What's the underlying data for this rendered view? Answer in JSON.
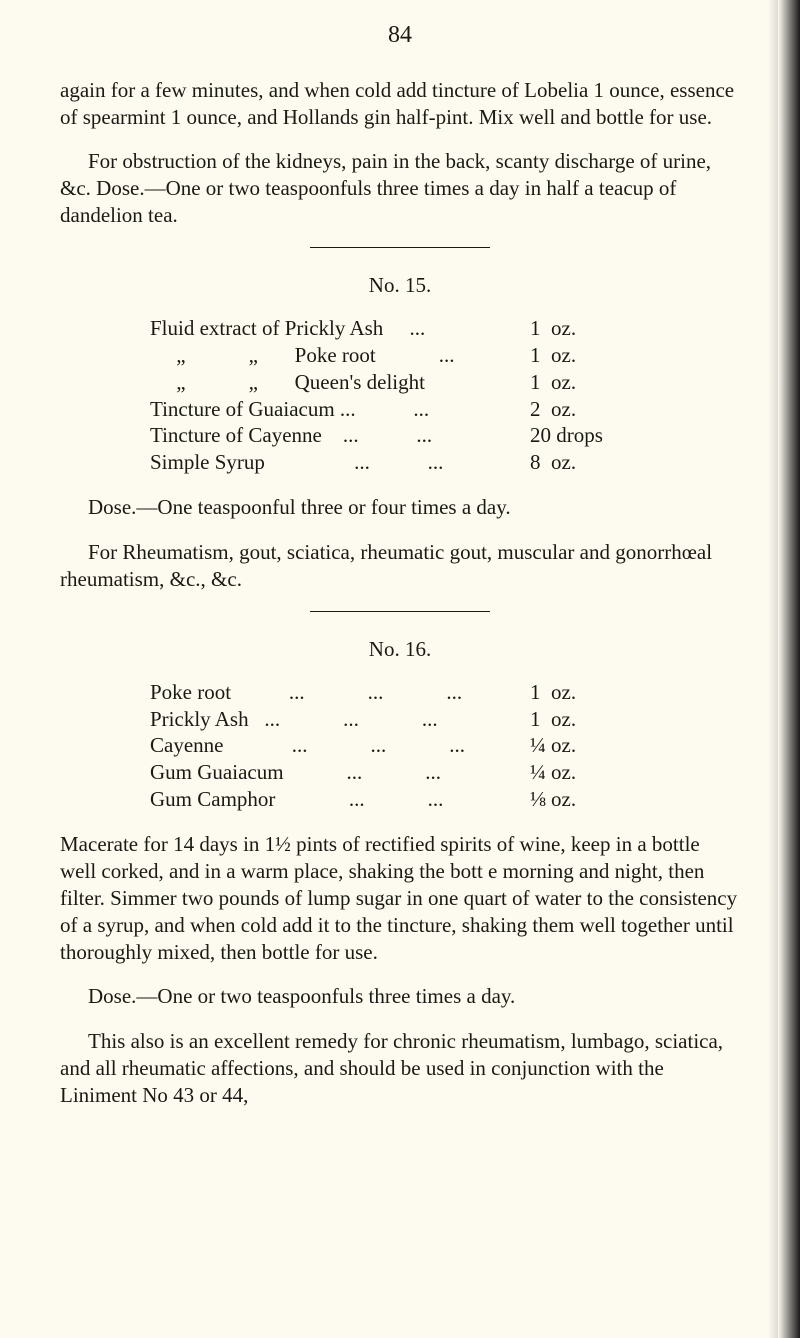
{
  "page_number": "84",
  "intro1": "again for a few minutes, and when cold add tincture of Lobelia 1 ounce, essence of spearmint 1 ounce, and Hollands gin half-pint. Mix well and bottle for use.",
  "intro2": "For obstruction of the kidneys, pain in the back, scanty discharge of urine, &c. Dose.—One or two teaspoonfuls three times a day in half a teacup of dandelion tea.",
  "recipe15": {
    "title": "No. 15.",
    "rows": [
      {
        "name": "Fluid extract of Prickly Ash     ...",
        "amount": "1  oz."
      },
      {
        "name": "     „            „       Poke root            ...",
        "amount": "1  oz."
      },
      {
        "name": "     „            „       Queen's delight",
        "amount": "1  oz."
      },
      {
        "name": "Tincture of Guaiacum ...           ...",
        "amount": "2  oz."
      },
      {
        "name": "Tincture of Cayenne    ...           ...",
        "amount": "20 drops"
      },
      {
        "name": "Simple Syrup                 ...           ...",
        "amount": "8  oz."
      }
    ],
    "dose": "Dose.—One teaspoonful three or four times a day.",
    "note": "For Rheumatism, gout, sciatica, rheumatic gout, muscular and gonorrhœal rheumatism, &c., &c."
  },
  "recipe16": {
    "title": "No. 16.",
    "rows": [
      {
        "name": "Poke root           ...            ...            ...",
        "amount": "1  oz."
      },
      {
        "name": "Prickly Ash   ...            ...            ...",
        "amount": "1  oz."
      },
      {
        "name": "Cayenne             ...            ...            ...",
        "amount": "¼ oz."
      },
      {
        "name": "Gum Guaiacum            ...            ...",
        "amount": "¼ oz."
      },
      {
        "name": "Gum Camphor              ...            ...",
        "amount": "⅛ oz."
      }
    ],
    "instructions": "Macerate for 14 days in 1½ pints of rectified spirits of wine, keep in a bottle well corked, and in a warm place, shaking the bott e morning and night, then filter. Simmer two pounds of lump sugar in one quart of water to the consistency of a syrup, and when cold add it to the tincture, shaking them well together until thoroughly mixed, then bottle for use.",
    "dose": "Dose.—One or two teaspoonfuls three times a day.",
    "note": "This also is an excellent remedy for chronic rheumatism, lumbago, sciatica, and all rheumatic affections, and should be used in conjunction with the Liniment No 43 or 44,"
  }
}
